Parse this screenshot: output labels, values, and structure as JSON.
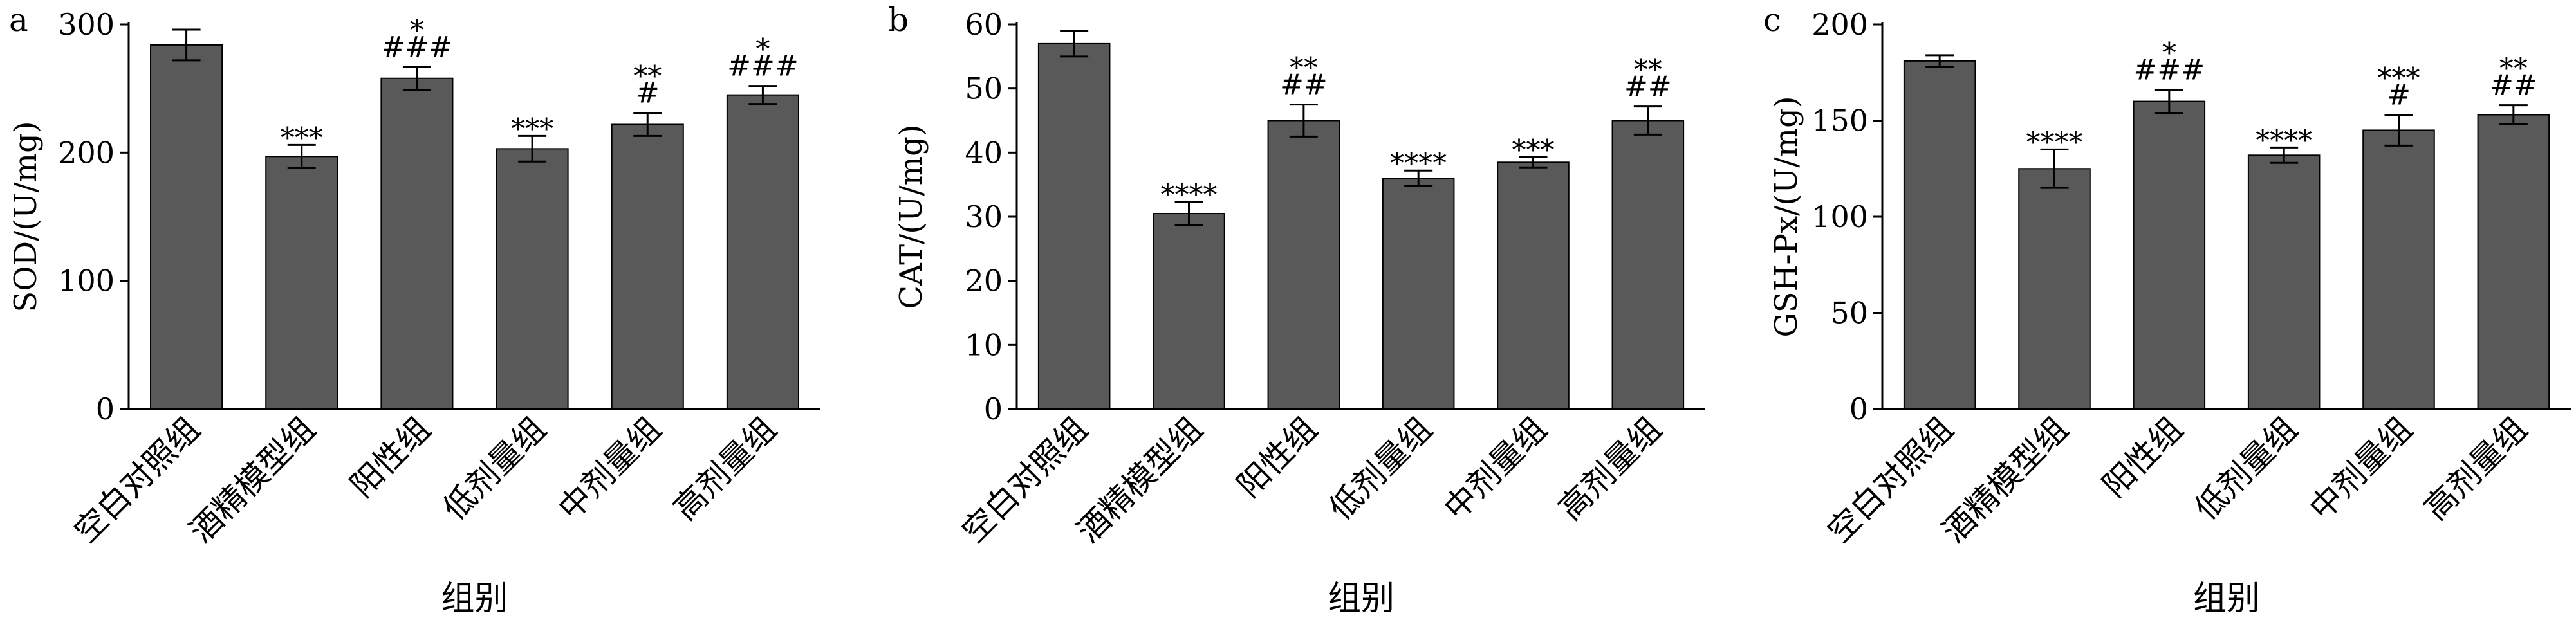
{
  "chart_data": [
    {
      "type": "bar",
      "panel": "a",
      "ylabel": "SOD/(U/mg)",
      "xlabel": "组别",
      "categories": [
        "空白对照组",
        "酒精模型组",
        "阳性组",
        "低剂量组",
        "中剂量组",
        "高剂量组"
      ],
      "values": [
        284,
        197,
        258,
        203,
        222,
        245
      ],
      "errors": [
        12,
        9,
        9,
        10,
        9,
        7
      ],
      "significance": [
        [
          "",
          ""
        ],
        [
          "***",
          ""
        ],
        [
          "*",
          "###"
        ],
        [
          "***",
          ""
        ],
        [
          "**",
          "#"
        ],
        [
          "*",
          "###"
        ]
      ],
      "ylim": [
        0,
        300
      ],
      "yticks": [
        0,
        100,
        200,
        300
      ],
      "bar_color": "#595959"
    },
    {
      "type": "bar",
      "panel": "b",
      "ylabel": "CAT/(U/mg)",
      "xlabel": "组别",
      "categories": [
        "空白对照组",
        "酒精模型组",
        "阳性组",
        "低剂量组",
        "中剂量组",
        "高剂量组"
      ],
      "values": [
        57,
        30.5,
        45,
        36,
        38.5,
        45
      ],
      "errors": [
        2,
        1.8,
        2.5,
        1.2,
        0.8,
        2.2
      ],
      "significance": [
        [
          "",
          ""
        ],
        [
          "****",
          ""
        ],
        [
          "**",
          "##"
        ],
        [
          "****",
          ""
        ],
        [
          "***",
          ""
        ],
        [
          "**",
          "##"
        ]
      ],
      "ylim": [
        0,
        60
      ],
      "yticks": [
        0,
        10,
        20,
        30,
        40,
        50,
        60
      ],
      "bar_color": "#595959"
    },
    {
      "type": "bar",
      "panel": "c",
      "ylabel": "GSH-Px/(U/mg)",
      "xlabel": "组别",
      "categories": [
        "空白对照组",
        "酒精模型组",
        "阳性组",
        "低剂量组",
        "中剂量组",
        "高剂量组"
      ],
      "values": [
        181,
        125,
        160,
        132,
        145,
        153
      ],
      "errors": [
        3,
        10,
        6,
        4,
        8,
        5
      ],
      "significance": [
        [
          "",
          ""
        ],
        [
          "****",
          ""
        ],
        [
          "*",
          "###"
        ],
        [
          "****",
          ""
        ],
        [
          "***",
          "#"
        ],
        [
          "**",
          "##"
        ]
      ],
      "ylim": [
        0,
        200
      ],
      "yticks": [
        0,
        50,
        100,
        150,
        200
      ],
      "bar_color": "#595959"
    }
  ]
}
